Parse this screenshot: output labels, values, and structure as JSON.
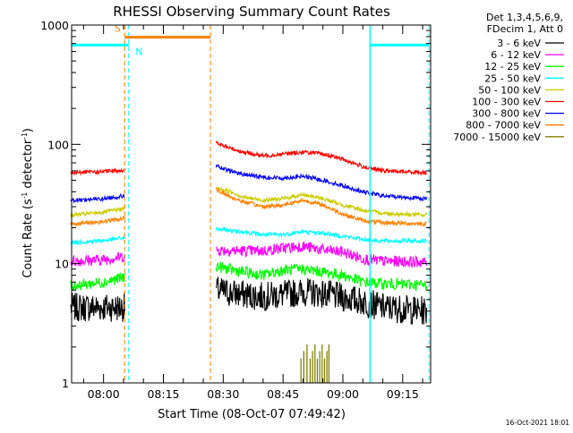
{
  "chart_data": {
    "type": "line",
    "title": "RHESSI Observing Summary Count Rates",
    "ylabel_main": "Count Rate (s",
    "ylabel_sup1": "-1",
    "ylabel_mid": " detector",
    "ylabel_sup2": "-1",
    "ylabel_end": ")",
    "xlabel": "Start Time (08-Oct-07 07:49:42)",
    "y_scale": "log",
    "ylim": [
      1,
      1000
    ],
    "y_ticks": [
      {
        "value": 1,
        "label": "1"
      },
      {
        "value": 10,
        "label": "10"
      },
      {
        "value": 100,
        "label": "100"
      },
      {
        "value": 1000,
        "label": "1000"
      }
    ],
    "xlim": [
      -8,
      82
    ],
    "x_unit": "minutes since 08:00",
    "x_ticks": [
      {
        "value": 0,
        "label": "08:00"
      },
      {
        "value": 15,
        "label": "08:15"
      },
      {
        "value": 30,
        "label": "08:30"
      },
      {
        "value": 45,
        "label": "08:45"
      },
      {
        "value": 60,
        "label": "09:00"
      },
      {
        "value": 75,
        "label": "09:15"
      }
    ],
    "legend_header": [
      "Det 1,3,4,5,6,9,",
      "FDecim 1, Att 0"
    ],
    "series": [
      {
        "name": "3 - 6 keV",
        "color": "#000000",
        "segments": [
          [
            [
              -8.2,
              4.3
            ],
            [
              5.3,
              4.3
            ]
          ],
          [
            [
              28.2,
              6.0
            ],
            [
              30,
              5.8
            ],
            [
              35,
              5.5
            ],
            [
              40,
              5.3
            ],
            [
              45,
              5.5
            ],
            [
              50,
              5.8
            ],
            [
              55,
              5.6
            ],
            [
              60,
              5.2
            ],
            [
              65,
              4.8
            ],
            [
              70,
              4.3
            ],
            [
              81,
              4.0
            ]
          ]
        ]
      },
      {
        "name": "6 - 12 keV",
        "color": "#ff00ff",
        "segments": [
          [
            [
              -8.2,
              10.5
            ],
            [
              0,
              10.8
            ],
            [
              5.3,
              11.5
            ]
          ],
          [
            [
              28.2,
              13
            ],
            [
              35,
              12.8
            ],
            [
              40,
              12.8
            ],
            [
              45,
              13.5
            ],
            [
              50,
              14
            ],
            [
              55,
              13
            ],
            [
              60,
              12.5
            ],
            [
              65,
              11
            ],
            [
              70,
              10.5
            ],
            [
              81,
              10.3
            ]
          ]
        ]
      },
      {
        "name": "12 - 25 keV",
        "color": "#00ff00",
        "segments": [
          [
            [
              -8.2,
              6.5
            ],
            [
              0,
              7.0
            ],
            [
              5.3,
              7.7
            ]
          ],
          [
            [
              28.2,
              9.5
            ],
            [
              35,
              8.5
            ],
            [
              40,
              8.0
            ],
            [
              45,
              8.8
            ],
            [
              50,
              9.0
            ],
            [
              55,
              8.5
            ],
            [
              60,
              8.0
            ],
            [
              65,
              7.0
            ],
            [
              70,
              6.8
            ],
            [
              81,
              6.6
            ]
          ]
        ]
      },
      {
        "name": "25 - 50 keV",
        "color": "#00ffff",
        "segments": [
          [
            [
              -8.2,
              15
            ],
            [
              0,
              15.6
            ],
            [
              5.3,
              16.5
            ]
          ],
          [
            [
              28.2,
              19.5
            ],
            [
              35,
              18.5
            ],
            [
              40,
              17.5
            ],
            [
              45,
              17.5
            ],
            [
              50,
              18.5
            ],
            [
              55,
              18
            ],
            [
              60,
              17
            ],
            [
              65,
              16
            ],
            [
              70,
              15.5
            ],
            [
              81,
              15.5
            ]
          ]
        ]
      },
      {
        "name": "50 - 100 keV",
        "color": "#cccc00",
        "segments": [
          [
            [
              -8.2,
              25.5
            ],
            [
              0,
              27
            ],
            [
              5.3,
              29
            ]
          ],
          [
            [
              28.2,
              43
            ],
            [
              32,
              40
            ],
            [
              35,
              36
            ],
            [
              40,
              34
            ],
            [
              45,
              35
            ],
            [
              50,
              38
            ],
            [
              55,
              35
            ],
            [
              60,
              31
            ],
            [
              65,
              28
            ],
            [
              70,
              26.5
            ],
            [
              81,
              25.5
            ]
          ]
        ]
      },
      {
        "name": "100 - 300 keV",
        "color": "#ff0000",
        "segments": [
          [
            [
              -8.2,
              58
            ],
            [
              0,
              59
            ],
            [
              5.3,
              61
            ]
          ],
          [
            [
              28.2,
              103
            ],
            [
              30,
              97
            ],
            [
              35,
              86
            ],
            [
              40,
              80
            ],
            [
              45,
              83
            ],
            [
              50,
              86
            ],
            [
              55,
              83
            ],
            [
              60,
              75
            ],
            [
              65,
              65
            ],
            [
              70,
              60
            ],
            [
              81,
              58
            ]
          ]
        ]
      },
      {
        "name": "300 - 800 keV",
        "color": "#0000ff",
        "segments": [
          [
            [
              -8.2,
              34
            ],
            [
              0,
              35
            ],
            [
              5.3,
              37
            ]
          ],
          [
            [
              28.2,
              66
            ],
            [
              30,
              62
            ],
            [
              35,
              56
            ],
            [
              40,
              53
            ],
            [
              45,
              52
            ],
            [
              50,
              54
            ],
            [
              55,
              50
            ],
            [
              60,
              45
            ],
            [
              65,
              40
            ],
            [
              70,
              37
            ],
            [
              81,
              35
            ]
          ]
        ]
      },
      {
        "name": "800 - 7000 keV",
        "color": "#ff8000",
        "segments": [
          [
            [
              -8.2,
              21.5
            ],
            [
              0,
              22.5
            ],
            [
              5.3,
              24
            ]
          ],
          [
            [
              28.2,
              42
            ],
            [
              32,
              36
            ],
            [
              35,
              33
            ],
            [
              40,
              30
            ],
            [
              45,
              31
            ],
            [
              50,
              34
            ],
            [
              55,
              31
            ],
            [
              60,
              26
            ],
            [
              65,
              23
            ],
            [
              70,
              22
            ],
            [
              81,
              21.5
            ]
          ]
        ]
      },
      {
        "name": "7000 - 15000 keV",
        "color": "#808000",
        "segments": []
      }
    ],
    "background_color": "#ffffff",
    "axis_color": "#000000",
    "annotations": {
      "s_label": "S",
      "n_label": "N",
      "saa_color": "#ff8000",
      "night_color": "#00ffff"
    },
    "footer_date": "16-Oct-2021 18:01"
  }
}
